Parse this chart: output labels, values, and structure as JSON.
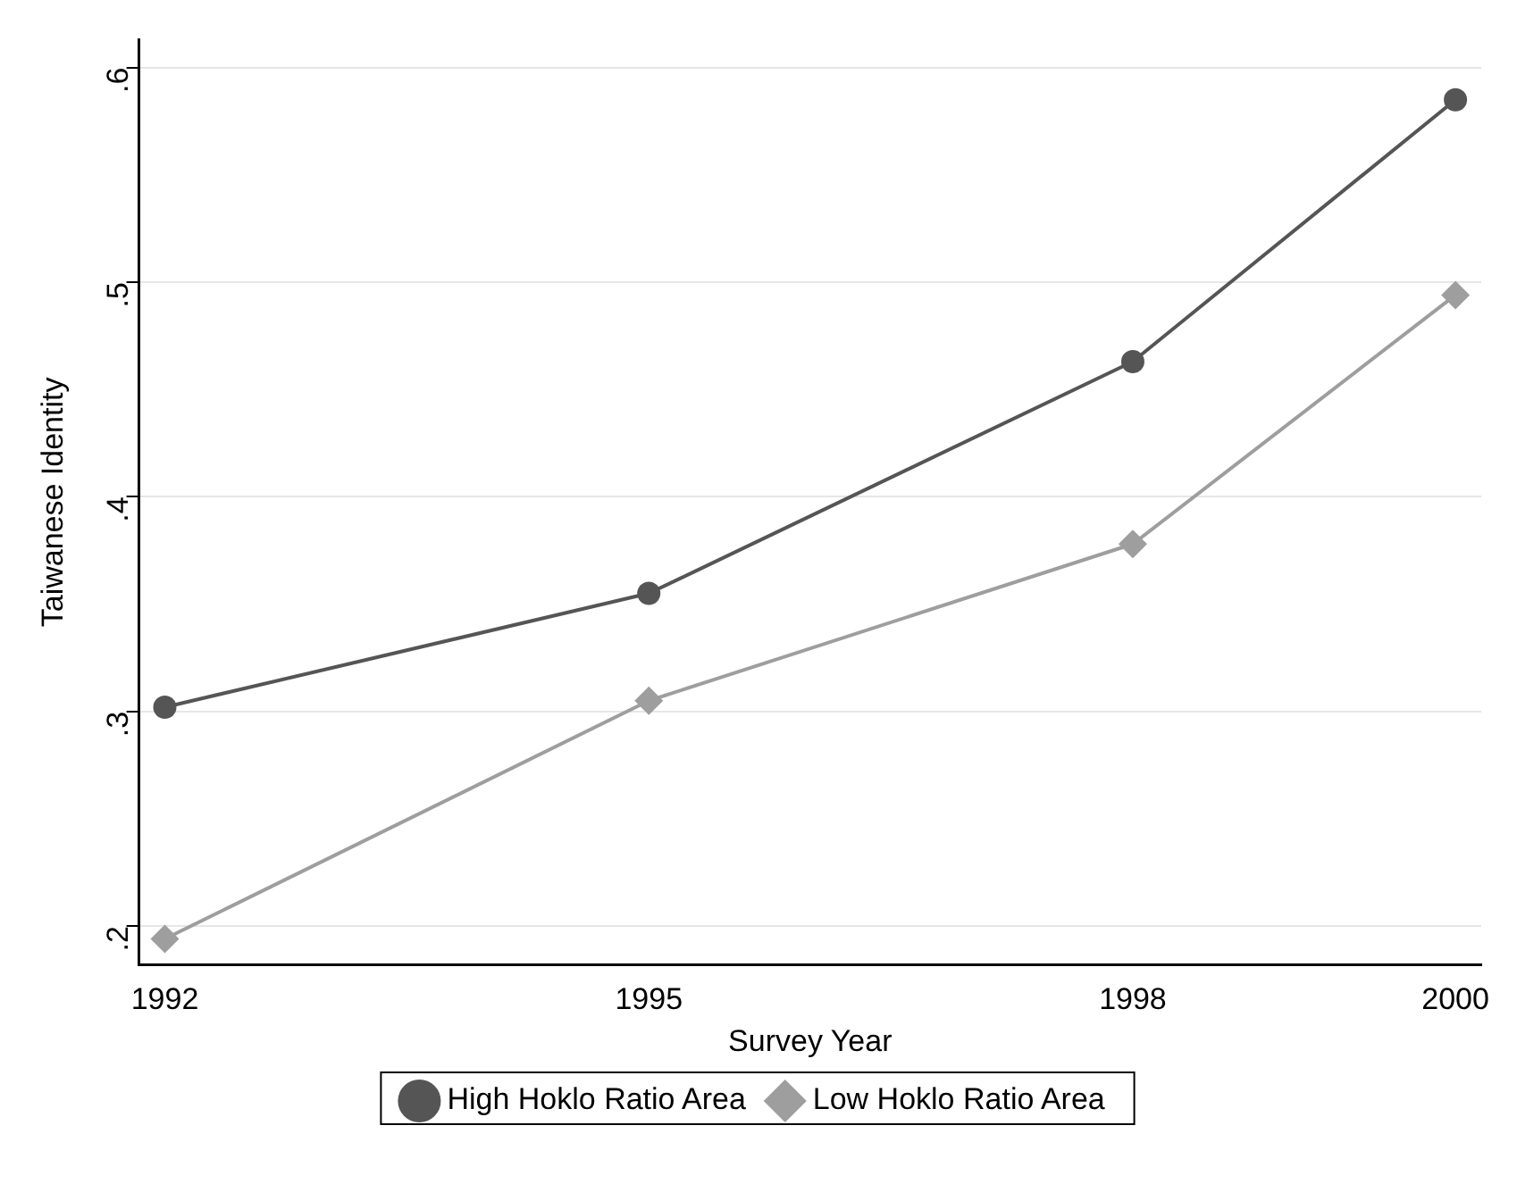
{
  "chart_data": {
    "type": "line",
    "xlabel": "Survey Year",
    "ylabel": "Taiwanese Identity",
    "x": [
      1992,
      1995,
      1998,
      2000
    ],
    "series": [
      {
        "name": "High Hoklo Ratio Area",
        "color": "#555555",
        "marker": "circle",
        "values": [
          0.302,
          0.355,
          0.463,
          0.585
        ]
      },
      {
        "name": "Low Hoklo Ratio Area",
        "color": "#9e9e9e",
        "marker": "diamond",
        "values": [
          0.194,
          0.305,
          0.378,
          0.494
        ]
      }
    ],
    "xlim": [
      1991.84,
      2000.16
    ],
    "xticks": [
      1992,
      1995,
      1998,
      2000
    ],
    "ylim": [
      0.182,
      0.613
    ],
    "yticks": [
      {
        "value": 0.2,
        "label": ".2"
      },
      {
        "value": 0.3,
        "label": ".3"
      },
      {
        "value": 0.4,
        "label": ".4"
      },
      {
        "value": 0.5,
        "label": ".5"
      },
      {
        "value": 0.6,
        "label": ".6"
      }
    ],
    "grid": "y",
    "legend": "bottom",
    "line_style": "solid"
  }
}
